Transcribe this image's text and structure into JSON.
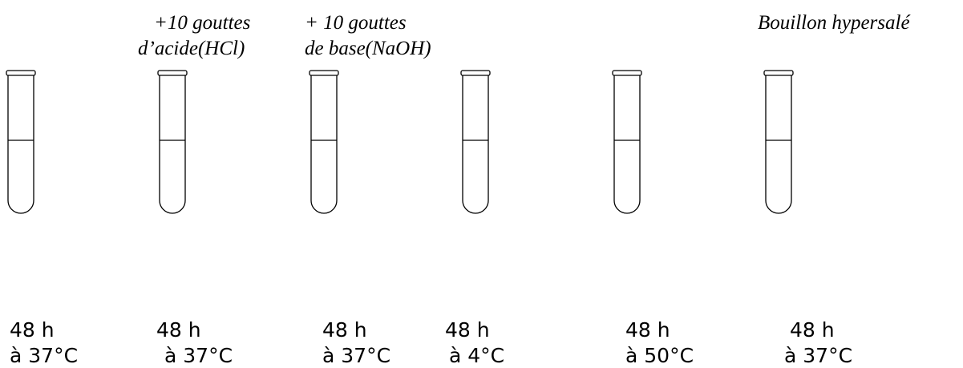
{
  "tubes": [
    {
      "label": [
        "48 h",
        "à 37°C"
      ]
    },
    {
      "annotation": [
        "+10 gouttes",
        "d’acide(HCl)"
      ],
      "label": [
        "48 h",
        "à 37°C"
      ]
    },
    {
      "annotation": [
        "+ 10 gouttes",
        "de base(NaOH)"
      ],
      "label": [
        "48 h",
        "à 37°C"
      ]
    },
    {
      "label": [
        "48 h",
        "à 4°C"
      ]
    },
    {
      "label": [
        "48 h",
        "à 50°C"
      ]
    },
    {
      "annotation": [
        "Bouillon hypersalé"
      ],
      "label": [
        "48 h",
        "à 37°C"
      ]
    }
  ]
}
